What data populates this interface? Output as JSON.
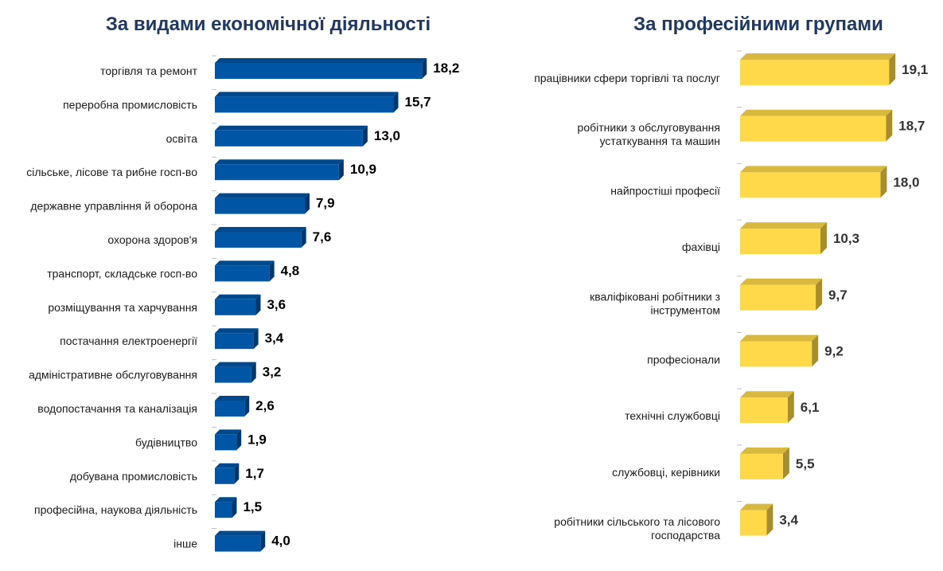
{
  "chart_data": [
    {
      "type": "bar",
      "title": "За видами економічної діяльності",
      "orientation": "horizontal",
      "color": "#0055a5",
      "categories": [
        "торгівля та ремонт",
        "переробна промисловість",
        "освіта",
        "сільське, лісове та рибне госп-во",
        "державне управління й оборона",
        "охорона здоров'я",
        "транспорт, складське госп-во",
        "розміщування та харчування",
        "постачання електроенергії",
        "адміністративне обслуговування",
        "водопостачання та каналізація",
        "будівництво",
        "добувана промисловість",
        "професійна, наукова діяльність",
        "інше"
      ],
      "values": [
        18.2,
        15.7,
        13.0,
        10.9,
        7.9,
        7.6,
        4.8,
        3.6,
        3.4,
        3.2,
        2.6,
        1.9,
        1.7,
        1.5,
        4.0
      ],
      "labels": [
        "18,2",
        "15,7",
        "13,0",
        "10,9",
        "7,9",
        "7,6",
        "4,8",
        "3,6",
        "3,4",
        "3,2",
        "2,6",
        "1,9",
        "1,7",
        "1,5",
        "4,0"
      ]
    },
    {
      "type": "bar",
      "title": "За професійними групами",
      "orientation": "horizontal",
      "color": "#ffd94a",
      "categories": [
        [
          "працівники сфери торгівлі та послуг"
        ],
        [
          "робітники з обслуговування",
          "устаткування та машин"
        ],
        [
          "найпростіші професії"
        ],
        [
          "фахівці"
        ],
        [
          "кваліфіковані робітники з",
          "інструментом"
        ],
        [
          "професіонали"
        ],
        [
          "технічні службовці"
        ],
        [
          "службовці, керівники"
        ],
        [
          "робітники сільського та лісового",
          "господарства"
        ]
      ],
      "values": [
        19.1,
        18.7,
        18.0,
        10.3,
        9.7,
        9.2,
        6.1,
        5.5,
        3.4
      ],
      "labels": [
        "19,1",
        "18,7",
        "18,0",
        "10,3",
        "9,7",
        "9,2",
        "6,1",
        "5,5",
        "3,4"
      ]
    }
  ]
}
